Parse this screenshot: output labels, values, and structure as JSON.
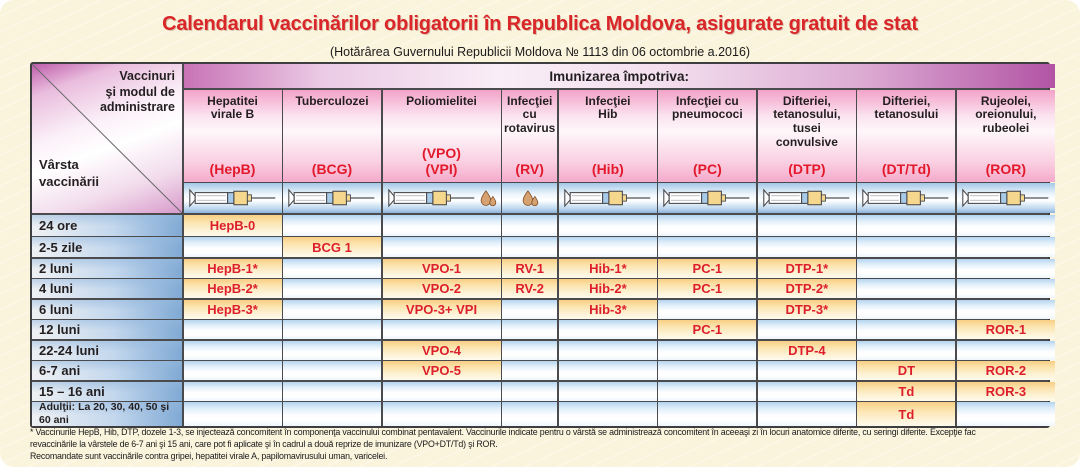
{
  "title": "Calendarul vaccinărilor obligatorii în Republica Moldova, asigurate gratuit de stat",
  "subtitle": "(Hotărârea Guvernului Republicii Moldova № 1113 din 06 octombrie a.2016)",
  "table": {
    "corner": {
      "top_right": "Vaccinuri\nşi modul de\nadministrare",
      "bottom_left": "Vârsta\nvaccinării"
    },
    "band_label": "Imunizarea împotriva:",
    "columns": [
      {
        "id": "hepb",
        "name": "Hepatitei\nvirale B",
        "codes": [
          "(HepB)"
        ],
        "icons": [
          "syringe"
        ]
      },
      {
        "id": "bcg",
        "name": "Tuberculozei",
        "codes": [
          "(BCG)"
        ],
        "icons": [
          "syringe"
        ]
      },
      {
        "id": "vpo",
        "name": "Poliomielitei",
        "codes": [
          "(VPO)",
          "(VPI)"
        ],
        "icons": [
          "syringe",
          "drops"
        ]
      },
      {
        "id": "rv",
        "name": "Infecţiei cu\nrotavirus",
        "codes": [
          "(RV)"
        ],
        "icons": [
          "drops"
        ]
      },
      {
        "id": "hib",
        "name": "Infecţiei\nHib",
        "codes": [
          "(Hib)"
        ],
        "icons": [
          "syringe"
        ]
      },
      {
        "id": "pc",
        "name": "Infecţiei cu\npneumococi",
        "codes": [
          "(PC)"
        ],
        "icons": [
          "syringe"
        ]
      },
      {
        "id": "dtp",
        "name": "Difteriei,\ntetanosului,\ntusei\nconvulsive",
        "codes": [
          "(DTP)"
        ],
        "icons": [
          "syringe"
        ]
      },
      {
        "id": "dttd",
        "name": "Difteriei,\ntetanosului",
        "codes": [
          "(DT/Td)"
        ],
        "icons": [
          "syringe"
        ]
      },
      {
        "id": "ror",
        "name": "Rujeolei,\noreionului,\nrubeolei",
        "codes": [
          "(ROR)"
        ],
        "icons": [
          "syringe"
        ]
      }
    ],
    "rows": [
      {
        "age": "24 ore",
        "cells": [
          "HepB-0",
          "",
          "",
          "",
          "",
          "",
          "",
          "",
          ""
        ]
      },
      {
        "age": "2-5 zile",
        "cells": [
          "",
          "BCG 1",
          "",
          "",
          "",
          "",
          "",
          "",
          ""
        ]
      },
      {
        "age": "2 luni",
        "cells": [
          "HepB-1*",
          "",
          "VPO-1",
          "RV-1",
          "Hib-1*",
          "PC-1",
          "DTP-1*",
          "",
          ""
        ]
      },
      {
        "age": "4 luni",
        "cells": [
          "HepB-2*",
          "",
          "VPO-2",
          "RV-2",
          "Hib-2*",
          "PC-1",
          "DTP-2*",
          "",
          ""
        ]
      },
      {
        "age": "6 luni",
        "cells": [
          "HepB-3*",
          "",
          "VPO-3+ VPI",
          "",
          "Hib-3*",
          "",
          "DTP-3*",
          "",
          ""
        ]
      },
      {
        "age": "12 luni",
        "cells": [
          "",
          "",
          "",
          "",
          "",
          "PC-1",
          "",
          "",
          "ROR-1"
        ]
      },
      {
        "age": "22-24 luni",
        "cells": [
          "",
          "",
          "VPO-4",
          "",
          "",
          "",
          "DTP-4",
          "",
          ""
        ]
      },
      {
        "age": "6-7 ani",
        "cells": [
          "",
          "",
          "VPO-5",
          "",
          "",
          "",
          "",
          "DT",
          "ROR-2"
        ]
      },
      {
        "age": "15 – 16 ani",
        "cells": [
          "",
          "",
          "",
          "",
          "",
          "",
          "",
          "Td",
          "ROR-3"
        ]
      },
      {
        "age": "Adulţii: La 20, 30, 40, 50 şi 60 ani",
        "cells": [
          "",
          "",
          "",
          "",
          "",
          "",
          "",
          "Td",
          ""
        ]
      }
    ]
  },
  "footnote_lines": [
    "* Vaccinurile HepB, Hib, DTP, dozele 1-3, se injectează concomitent în componenţa vaccinului combinat pentavalent. Vaccinurile indicate pentru o vârstă se administrează concomitent în aceeaşi zi în locuri anatomice diferite, cu seringi diferite. Excepţie fac",
    "revaccinările la vârstele de 6-7 ani şi 15 ani, care pot fi aplicate şi în cadrul a două reprize de imunizare (VPO+DT/Td) şi ROR.",
    "Recomandate sunt vaccinările contra gripei, hepatitei virale A, papilomavirusului uman, varicelei."
  ],
  "colors": {
    "background_cream": "#FBF4DC",
    "title_red": "#D92629",
    "cell_value_red": "#DD1F2D",
    "band_pink": "#C873B6",
    "header_pink": "#F2A2C8",
    "row_blue": "#7FA9D4",
    "filled_cell_yellow": "#F8CE85",
    "grid_line": "#4B4B4D",
    "drop_tan": "#D7A272"
  }
}
